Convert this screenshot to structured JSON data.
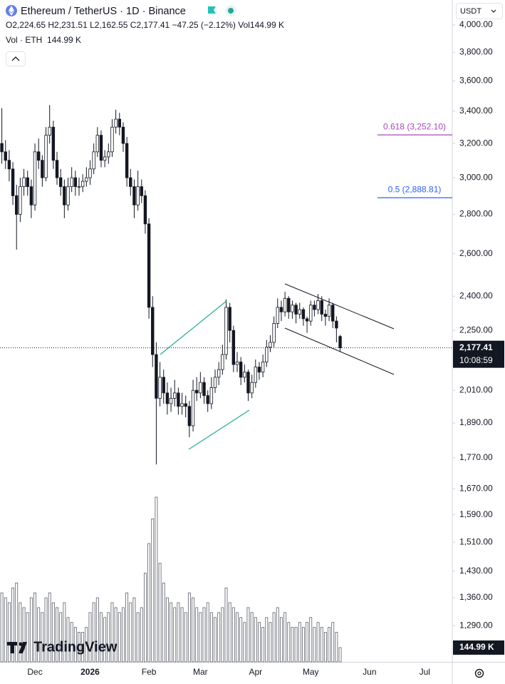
{
  "chart_data": {
    "type": "candlestick",
    "title": "Ethereum / TetherUS · 1D · Binance",
    "subtitle": "O2,224.65 H2,231.51 L2,162.55 C2,177.41 −47.25 (−2.12%) Vol144.99 K",
    "volume_legend": "Vol · ETH  144.99 K",
    "currency": "USDT",
    "watermark": "TradingView",
    "last_price_label": "2,177.41",
    "countdown": "10:08:59",
    "last_volume_label": "144.99 K",
    "log_scale": true,
    "grid": false,
    "candle_colors": {
      "up": "#ffffff",
      "down": "#131722",
      "border": "#131722"
    },
    "volume_color": "#5d606b",
    "ylim": [
      1205,
      4193
    ],
    "yticks": [
      {
        "value": 1290,
        "label": "1,290.00"
      },
      {
        "value": 1360,
        "label": "1,360.00"
      },
      {
        "value": 1430,
        "label": "1,430.00"
      },
      {
        "value": 1510,
        "label": "1,510.00"
      },
      {
        "value": 1590,
        "label": "1,590.00"
      },
      {
        "value": 1670,
        "label": "1,670.00"
      },
      {
        "value": 1770,
        "label": "1,770.00"
      },
      {
        "value": 1890,
        "label": "1,890.00"
      },
      {
        "value": 2010,
        "label": "2,010.00"
      },
      {
        "value": 2250,
        "label": "2,250.00"
      },
      {
        "value": 2400,
        "label": "2,400.00"
      },
      {
        "value": 2600,
        "label": "2,600.00"
      },
      {
        "value": 2800,
        "label": "2,800.00"
      },
      {
        "value": 3000,
        "label": "3,000.00"
      },
      {
        "value": 3200,
        "label": "3,200.00"
      },
      {
        "value": 3400,
        "label": "3,400.00"
      },
      {
        "value": 3600,
        "label": "3,600.00"
      },
      {
        "value": 3800,
        "label": "3,800.00"
      },
      {
        "value": 4000,
        "label": "4,000.00"
      }
    ],
    "fib_levels": [
      {
        "value": 3252.1,
        "label": "0.618 (3,252.10)",
        "color": "#ab47bc"
      },
      {
        "value": 2888.81,
        "label": "0.5 (2,888.81)",
        "color": "#2962ff"
      }
    ],
    "categories": [
      null,
      null,
      null,
      null,
      null,
      null,
      null,
      null,
      null,
      "Dec",
      null,
      null,
      null,
      null,
      null,
      null,
      null,
      null,
      null,
      null,
      null,
      null,
      null,
      null,
      "2026",
      null,
      null,
      null,
      null,
      null,
      null,
      null,
      null,
      null,
      null,
      null,
      null,
      null,
      null,
      null,
      "Feb",
      null,
      null,
      null,
      null,
      null,
      null,
      null,
      null,
      null,
      null,
      null,
      null,
      null,
      "Mar",
      null,
      null,
      null,
      null,
      null,
      null,
      null,
      null,
      null,
      null,
      null,
      null,
      null,
      null,
      "Apr",
      null,
      null,
      null,
      null,
      null,
      null,
      null,
      null,
      null,
      null,
      null,
      null,
      null,
      null,
      "May",
      null,
      null,
      null,
      null,
      null,
      null,
      null,
      null,
      null,
      null,
      null,
      null,
      null,
      null,
      null,
      "Jun",
      null,
      null,
      null,
      null,
      null,
      null,
      null,
      null,
      null,
      null,
      null,
      null,
      null,
      null,
      "Jul",
      null,
      null,
      null,
      null,
      null,
      null,
      null
    ],
    "open": [
      3200,
      3150,
      3100,
      3050,
      2900,
      2800,
      2950,
      3000,
      2950,
      2850,
      3150,
      3100,
      3000,
      3250,
      3300,
      3100,
      3000,
      2950,
      2850,
      2950,
      3000,
      2950,
      2950,
      2980,
      3000,
      3050,
      3150,
      3250,
      3100,
      3120,
      3150,
      3300,
      3350,
      3300,
      3200,
      3000,
      2950,
      2850,
      2950,
      2900,
      2750,
      2350,
      2150,
      1980,
      2060,
      2000,
      1960,
      1980,
      2000,
      1950,
      1960,
      1950,
      1880,
      2010,
      2000,
      2040,
      1990,
      1960,
      2020,
      2060,
      2090,
      2150,
      2350,
      2250,
      2110,
      2120,
      2060,
      2080,
      2000,
      2040,
      2100,
      2080,
      2120,
      2180,
      2200,
      2280,
      2350,
      2330,
      2390,
      2330,
      2360,
      2320,
      2340,
      2300,
      2290,
      2360,
      2340,
      2380,
      2320,
      2310,
      2360,
      2290,
      2224.65,
      null,
      null,
      null,
      null,
      null,
      null,
      null,
      null,
      null,
      null,
      null,
      null,
      null,
      null,
      null,
      null,
      null,
      null,
      null,
      null,
      null,
      null,
      null,
      null,
      null,
      null,
      null,
      null,
      null,
      null
    ],
    "high": [
      3420,
      3220,
      3160,
      3090,
      2960,
      3000,
      3050,
      3040,
      2990,
      3200,
      3230,
      3130,
      3300,
      3440,
      3340,
      3150,
      3050,
      2990,
      3000,
      3060,
      3040,
      3000,
      3020,
      3060,
      3100,
      3200,
      3300,
      3280,
      3160,
      3200,
      3350,
      3410,
      3390,
      3330,
      3240,
      3050,
      2990,
      3040,
      2990,
      2930,
      2780,
      2400,
      2200,
      2120,
      2090,
      2040,
      2020,
      2050,
      2020,
      2000,
      1990,
      1970,
      2050,
      2060,
      2080,
      2060,
      2010,
      2060,
      2090,
      2120,
      2190,
      2385,
      2370,
      2270,
      2160,
      2140,
      2110,
      2090,
      2070,
      2130,
      2120,
      2150,
      2210,
      2230,
      2310,
      2390,
      2380,
      2420,
      2400,
      2380,
      2370,
      2370,
      2350,
      2310,
      2380,
      2380,
      2410,
      2400,
      2340,
      2390,
      2370,
      2310,
      2231.51,
      null,
      null,
      null,
      null,
      null,
      null,
      null,
      null,
      null,
      null,
      null,
      null,
      null,
      null,
      null,
      null,
      null,
      null,
      null,
      null,
      null,
      null,
      null,
      null,
      null,
      null,
      null,
      null,
      null,
      null
    ],
    "low": [
      3080,
      3050,
      2980,
      2850,
      2620,
      2760,
      2900,
      2900,
      2780,
      2820,
      3050,
      2950,
      2980,
      3200,
      3050,
      2960,
      2900,
      2780,
      2820,
      2920,
      2900,
      2900,
      2920,
      2950,
      2960,
      3020,
      3120,
      3060,
      3060,
      3080,
      3120,
      3260,
      3250,
      3150,
      2950,
      2900,
      2780,
      2820,
      2860,
      2700,
      2300,
      2100,
      1748,
      1950,
      1960,
      1920,
      1930,
      1950,
      1920,
      1920,
      1910,
      1840,
      1860,
      1970,
      1980,
      1960,
      1930,
      1940,
      2000,
      2030,
      2070,
      2130,
      2200,
      2080,
      2080,
      2030,
      2040,
      1970,
      1980,
      2020,
      2050,
      2060,
      2100,
      2160,
      2180,
      2260,
      2290,
      2310,
      2300,
      2300,
      2280,
      2300,
      2270,
      2240,
      2270,
      2310,
      2320,
      2290,
      2270,
      2290,
      2260,
      2200,
      2162.55,
      null,
      null,
      null,
      null,
      null,
      null,
      null,
      null,
      null,
      null,
      null,
      null,
      null,
      null,
      null,
      null,
      null,
      null,
      null,
      null,
      null,
      null,
      null,
      null,
      null,
      null,
      null,
      null,
      null,
      null
    ],
    "close": [
      3150,
      3100,
      3050,
      2900,
      2800,
      2950,
      3000,
      2950,
      2850,
      3150,
      3100,
      3000,
      3250,
      3300,
      3100,
      3000,
      2950,
      2850,
      2950,
      3000,
      2950,
      2950,
      2980,
      3000,
      3050,
      3150,
      3250,
      3100,
      3120,
      3150,
      3300,
      3350,
      3300,
      3200,
      3000,
      2950,
      2850,
      2950,
      2900,
      2750,
      2350,
      2150,
      1980,
      2060,
      2000,
      1960,
      1980,
      2000,
      1950,
      1960,
      1950,
      1880,
      2010,
      2000,
      2040,
      1990,
      1960,
      2020,
      2060,
      2090,
      2150,
      2350,
      2250,
      2110,
      2120,
      2060,
      2080,
      2000,
      2040,
      2100,
      2080,
      2120,
      2180,
      2200,
      2280,
      2350,
      2330,
      2390,
      2330,
      2360,
      2320,
      2340,
      2300,
      2290,
      2360,
      2340,
      2380,
      2320,
      2310,
      2360,
      2290,
      2260,
      2177.41,
      null,
      null,
      null,
      null,
      null,
      null,
      null,
      null,
      null,
      null,
      null,
      null,
      null,
      null,
      null,
      null,
      null,
      null,
      null,
      null,
      null,
      null,
      null,
      null,
      null,
      null,
      null,
      null,
      null,
      null
    ],
    "volume": [
      700,
      650,
      600,
      750,
      800,
      600,
      550,
      500,
      650,
      700,
      550,
      500,
      650,
      700,
      600,
      550,
      500,
      600,
      450,
      400,
      350,
      300,
      300,
      350,
      500,
      600,
      650,
      500,
      450,
      500,
      600,
      550,
      500,
      550,
      700,
      600,
      650,
      500,
      550,
      900,
      1200,
      1450,
      1670,
      1000,
      800,
      650,
      600,
      550,
      600,
      550,
      500,
      700,
      650,
      550,
      500,
      550,
      600,
      500,
      450,
      500,
      550,
      750,
      600,
      550,
      500,
      450,
      400,
      550,
      500,
      450,
      400,
      350,
      450,
      400,
      500,
      550,
      450,
      500,
      400,
      350,
      350,
      400,
      350,
      400,
      450,
      350,
      400,
      350,
      300,
      350,
      400,
      300,
      144.99,
      null,
      null,
      null,
      null,
      null,
      null,
      null,
      null,
      null,
      null,
      null,
      null,
      null,
      null,
      null,
      null,
      null,
      null,
      null,
      null,
      null,
      null,
      null,
      null,
      null,
      null,
      null,
      null,
      null,
      null
    ]
  }
}
